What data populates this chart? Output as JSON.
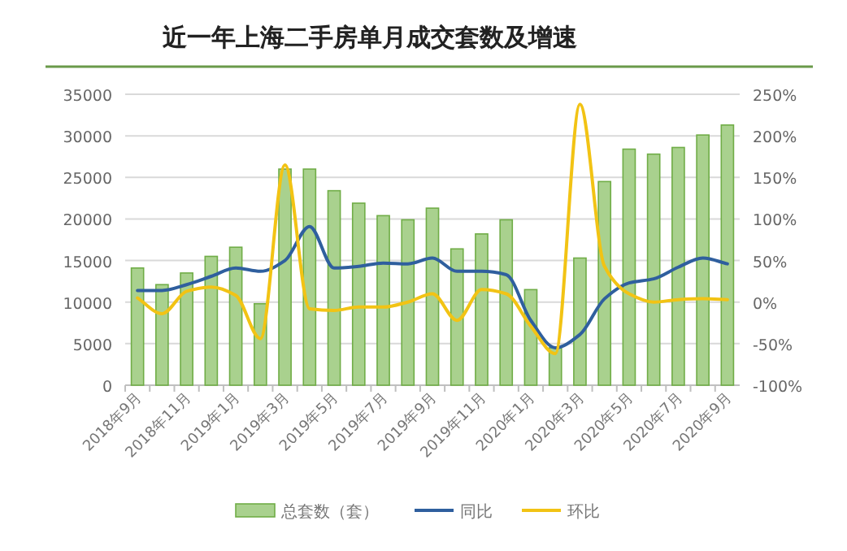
{
  "chart_data": {
    "type": "bar",
    "title": "近一年上海二手房单月成交套数及增速",
    "categories": [
      "2018年9月",
      null,
      "2018年11月",
      null,
      "2019年1月",
      null,
      "2019年3月",
      null,
      "2019年5月",
      null,
      "2019年7月",
      null,
      "2019年9月",
      null,
      "2019年11月",
      null,
      "2020年1月",
      null,
      "2020年3月",
      null,
      "2020年5月",
      null,
      "2020年7月",
      null,
      "2020年9月"
    ],
    "series": [
      {
        "name": "总套数（套）",
        "color": "#a9d18e",
        "values": [
          14100,
          12100,
          13500,
          15500,
          16600,
          9800,
          26000,
          26000,
          23400,
          21900,
          20400,
          19900,
          21300,
          16400,
          18200,
          19900,
          11500,
          4500,
          15300,
          24500,
          28400,
          27800,
          28600,
          30100,
          31300
        ]
      },
      {
        "name": "同比",
        "type": "line",
        "axis": "y2",
        "color": "#2f5f9e",
        "values": [
          14,
          14,
          21,
          31,
          41,
          37,
          50,
          91,
          41,
          43,
          47,
          46,
          53,
          37,
          37,
          33,
          -22,
          -55,
          -39,
          4,
          23,
          28,
          42,
          53,
          46
        ]
      },
      {
        "name": "环比",
        "type": "line",
        "axis": "y2",
        "color": "#f2c314",
        "values": [
          5,
          -14,
          13,
          18,
          8,
          -44,
          165,
          -8,
          -10,
          -6,
          -6,
          0,
          10,
          -22,
          15,
          10,
          -29,
          -62,
          238,
          43,
          10,
          0,
          3,
          4,
          3
        ]
      }
    ],
    "ylim": [
      0,
      35000
    ],
    "yticks": [
      0,
      5000,
      10000,
      15000,
      20000,
      25000,
      30000,
      35000
    ],
    "y2lim": [
      -100,
      250
    ],
    "y2ticks": [
      {
        "value": -100,
        "label": "-100%"
      },
      {
        "value": -50,
        "label": "-50%"
      },
      {
        "value": 0,
        "label": "0%"
      },
      {
        "value": 50,
        "label": "50%"
      },
      {
        "value": 100,
        "label": "100%"
      },
      {
        "value": 150,
        "label": "150%"
      },
      {
        "value": 200,
        "label": "200%"
      },
      {
        "value": 250,
        "label": "250%"
      }
    ],
    "grid": "y",
    "legend": "bottom"
  }
}
